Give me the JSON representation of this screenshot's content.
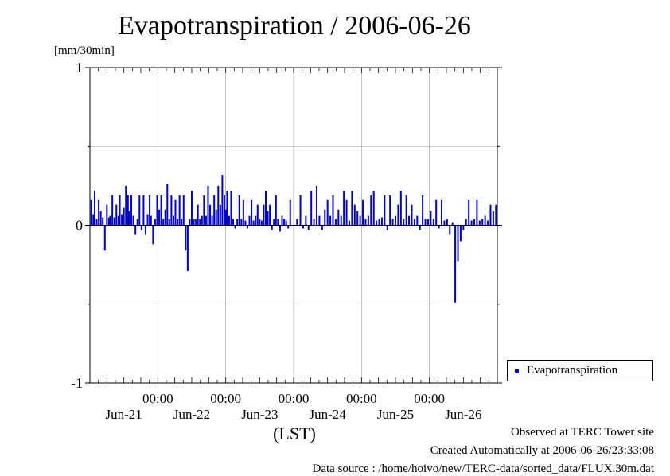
{
  "chart_data": {
    "type": "bar",
    "title": "Evapotranspiration / 2006-06-26",
    "ylabel": "[mm/30min]",
    "xlabel": "(LST)",
    "ylim": [
      -1,
      1
    ],
    "yticks": [
      "1",
      "0",
      "-1"
    ],
    "xlim_days": [
      0,
      6
    ],
    "time_ticks": [
      "00:00",
      "00:00",
      "00:00",
      "00:00",
      "00:00"
    ],
    "date_ticks": [
      "Jun-21",
      "Jun-22",
      "Jun-23",
      "Jun-24",
      "Jun-25",
      "Jun-26"
    ],
    "grid": true,
    "legend": {
      "position": "right",
      "entries": [
        {
          "label": "Evapotranspiration",
          "color": "#0000ff"
        }
      ]
    },
    "bar_color": "#0000cc",
    "series": [
      {
        "name": "Evapotranspiration",
        "x_days": [
          0.02,
          0.05,
          0.07,
          0.1,
          0.13,
          0.16,
          0.19,
          0.22,
          0.25,
          0.28,
          0.3,
          0.33,
          0.36,
          0.39,
          0.42,
          0.44,
          0.47,
          0.5,
          0.53,
          0.56,
          0.58,
          0.61,
          0.64,
          0.67,
          0.7,
          0.73,
          0.76,
          0.79,
          0.82,
          0.85,
          0.88,
          0.9,
          0.93,
          0.96,
          0.99,
          1.02,
          1.05,
          1.08,
          1.11,
          1.14,
          1.17,
          1.2,
          1.23,
          1.26,
          1.29,
          1.32,
          1.35,
          1.38,
          1.41,
          1.44,
          1.47,
          1.5,
          1.53,
          1.56,
          1.59,
          1.62,
          1.65,
          1.68,
          1.71,
          1.74,
          1.77,
          1.8,
          1.83,
          1.86,
          1.89,
          1.92,
          1.95,
          1.98,
          2.0,
          2.02,
          2.05,
          2.08,
          2.11,
          2.14,
          2.17,
          2.2,
          2.23,
          2.26,
          2.29,
          2.32,
          2.35,
          2.38,
          2.41,
          2.44,
          2.47,
          2.5,
          2.53,
          2.56,
          2.59,
          2.62,
          2.65,
          2.68,
          2.71,
          2.74,
          2.77,
          2.8,
          2.83,
          2.86,
          2.89,
          2.92,
          2.95,
          3.05,
          3.1,
          3.14,
          3.18,
          3.22,
          3.26,
          3.3,
          3.34,
          3.38,
          3.42,
          3.46,
          3.5,
          3.54,
          3.58,
          3.62,
          3.66,
          3.7,
          3.74,
          3.78,
          3.82,
          3.86,
          3.9,
          3.94,
          3.98,
          4.02,
          4.06,
          4.1,
          4.14,
          4.18,
          4.22,
          4.26,
          4.3,
          4.34,
          4.38,
          4.42,
          4.46,
          4.5,
          4.54,
          4.58,
          4.62,
          4.66,
          4.7,
          4.74,
          4.78,
          4.82,
          4.86,
          4.9,
          4.94,
          4.98,
          5.02,
          5.06,
          5.1,
          5.14,
          5.18,
          5.22,
          5.26,
          5.3,
          5.34,
          5.38,
          5.42,
          5.46,
          5.5,
          5.54,
          5.58,
          5.62,
          5.66,
          5.7,
          5.74,
          5.78,
          5.82,
          5.86,
          5.9,
          5.94,
          5.98
        ],
        "values": [
          0.16,
          0.07,
          0.22,
          0.04,
          0.16,
          0.09,
          0.05,
          -0.16,
          0.13,
          0.05,
          0.06,
          0.19,
          0.05,
          0.13,
          0.06,
          0.19,
          0.07,
          0.11,
          0.25,
          0.19,
          0.09,
          0.19,
          0.06,
          -0.06,
          0.04,
          0.19,
          -0.03,
          0.19,
          -0.06,
          0.07,
          0.19,
          0.06,
          -0.12,
          0.04,
          0.19,
          0.1,
          0.19,
          0.04,
          0.1,
          0.26,
          0.04,
          0.19,
          0.06,
          0.16,
          0.04,
          0.19,
          0.04,
          0.19,
          -0.16,
          -0.29,
          0.04,
          0.22,
          0.04,
          0.04,
          0.13,
          0.04,
          0.06,
          0.19,
          0.06,
          0.25,
          0.13,
          0.06,
          0.19,
          0.1,
          0.25,
          0.13,
          0.32,
          0.19,
          0.1,
          0.22,
          0.06,
          0.22,
          0.04,
          -0.02,
          0.04,
          0.19,
          0.04,
          0.16,
          0.03,
          -0.02,
          0.06,
          0.16,
          0.03,
          0.06,
          0.13,
          0.04,
          0.03,
          0.13,
          0.22,
          0.09,
          0.13,
          -0.03,
          0.04,
          0.19,
          0.04,
          -0.04,
          0.06,
          0.04,
          0.03,
          -0.02,
          0.16,
          0.04,
          0.19,
          -0.02,
          0.06,
          -0.03,
          0.22,
          0.04,
          0.25,
          0.06,
          -0.03,
          0.1,
          0.16,
          0.06,
          0.19,
          0.04,
          0.1,
          0.06,
          0.22,
          0.16,
          0.03,
          0.22,
          0.13,
          0.09,
          0.06,
          0.16,
          0.04,
          0.06,
          0.19,
          0.22,
          0.03,
          0.04,
          0.05,
          0.19,
          -0.03,
          0.19,
          0.04,
          0.06,
          0.13,
          0.22,
          0.04,
          0.19,
          0.06,
          0.13,
          0.04,
          0.06,
          -0.03,
          0.19,
          0.04,
          0.04,
          0.09,
          0.04,
          0.16,
          -0.02,
          0.16,
          0.03,
          0.04,
          -0.06,
          0.02,
          -0.49,
          -0.23,
          -0.1,
          -0.03,
          0.04,
          0.16,
          0.03,
          0.04,
          0.16,
          0.03,
          0.04,
          0.06,
          0.03,
          0.13,
          0.09,
          0.13
        ]
      }
    ]
  },
  "footer": {
    "observed": "Observed at TERC Tower site",
    "created": "Created Automatically at 2006-06-26/23:33:08",
    "source": "Data source : /home/hoivo/new/TERC-data/sorted_data/FLUX.30m.dat"
  }
}
